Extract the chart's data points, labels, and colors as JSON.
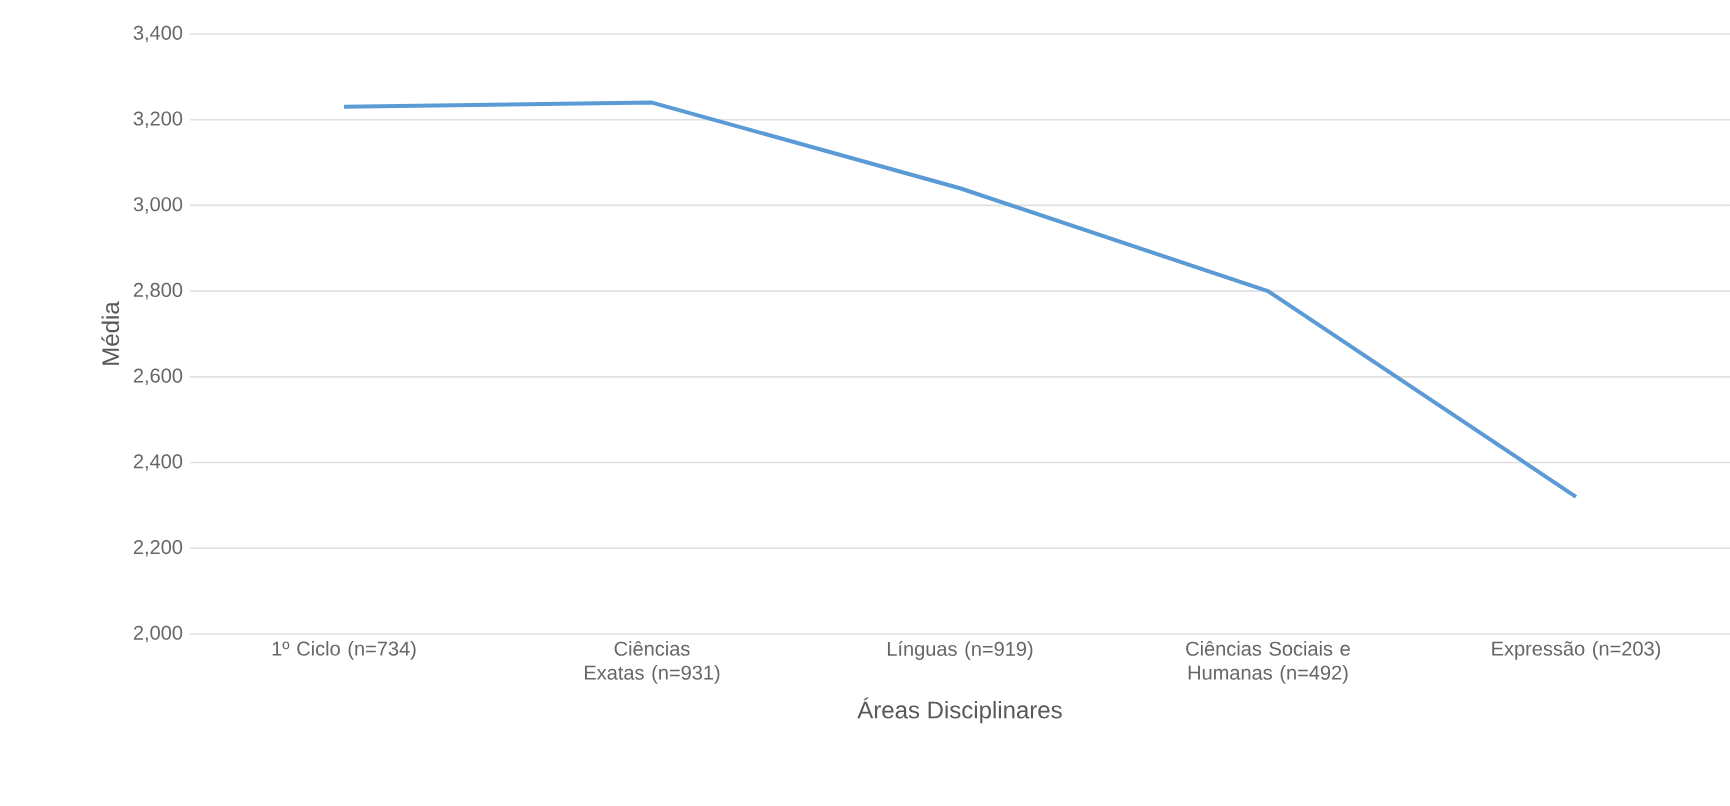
{
  "chart_data": {
    "type": "line",
    "xlabel": "Áreas Disciplinares",
    "ylabel": "Média",
    "categories": [
      "1º Ciclo (n=734)",
      "Ciências Exatas (n=931)",
      "Línguas (n=919)",
      "Ciências Sociais e Humanas (n=492)",
      "Expressão (n=203)"
    ],
    "series": [
      {
        "color": "#5b9bd5",
        "values": [
          3230,
          3240,
          3040,
          2800,
          2320
        ]
      }
    ],
    "ylim": [
      2000,
      3400
    ],
    "yticks": [
      {
        "value": 2000,
        "label": "2,000"
      },
      {
        "value": 2200,
        "label": "2,200"
      },
      {
        "value": 2400,
        "label": "2,400"
      },
      {
        "value": 2600,
        "label": "2,600"
      },
      {
        "value": 2800,
        "label": "2,800"
      },
      {
        "value": 3000,
        "label": "3,000"
      },
      {
        "value": 3200,
        "label": "3,200"
      },
      {
        "value": 3400,
        "label": "3,400"
      }
    ],
    "grid": "y",
    "marker": "none",
    "line_style": "solid"
  }
}
